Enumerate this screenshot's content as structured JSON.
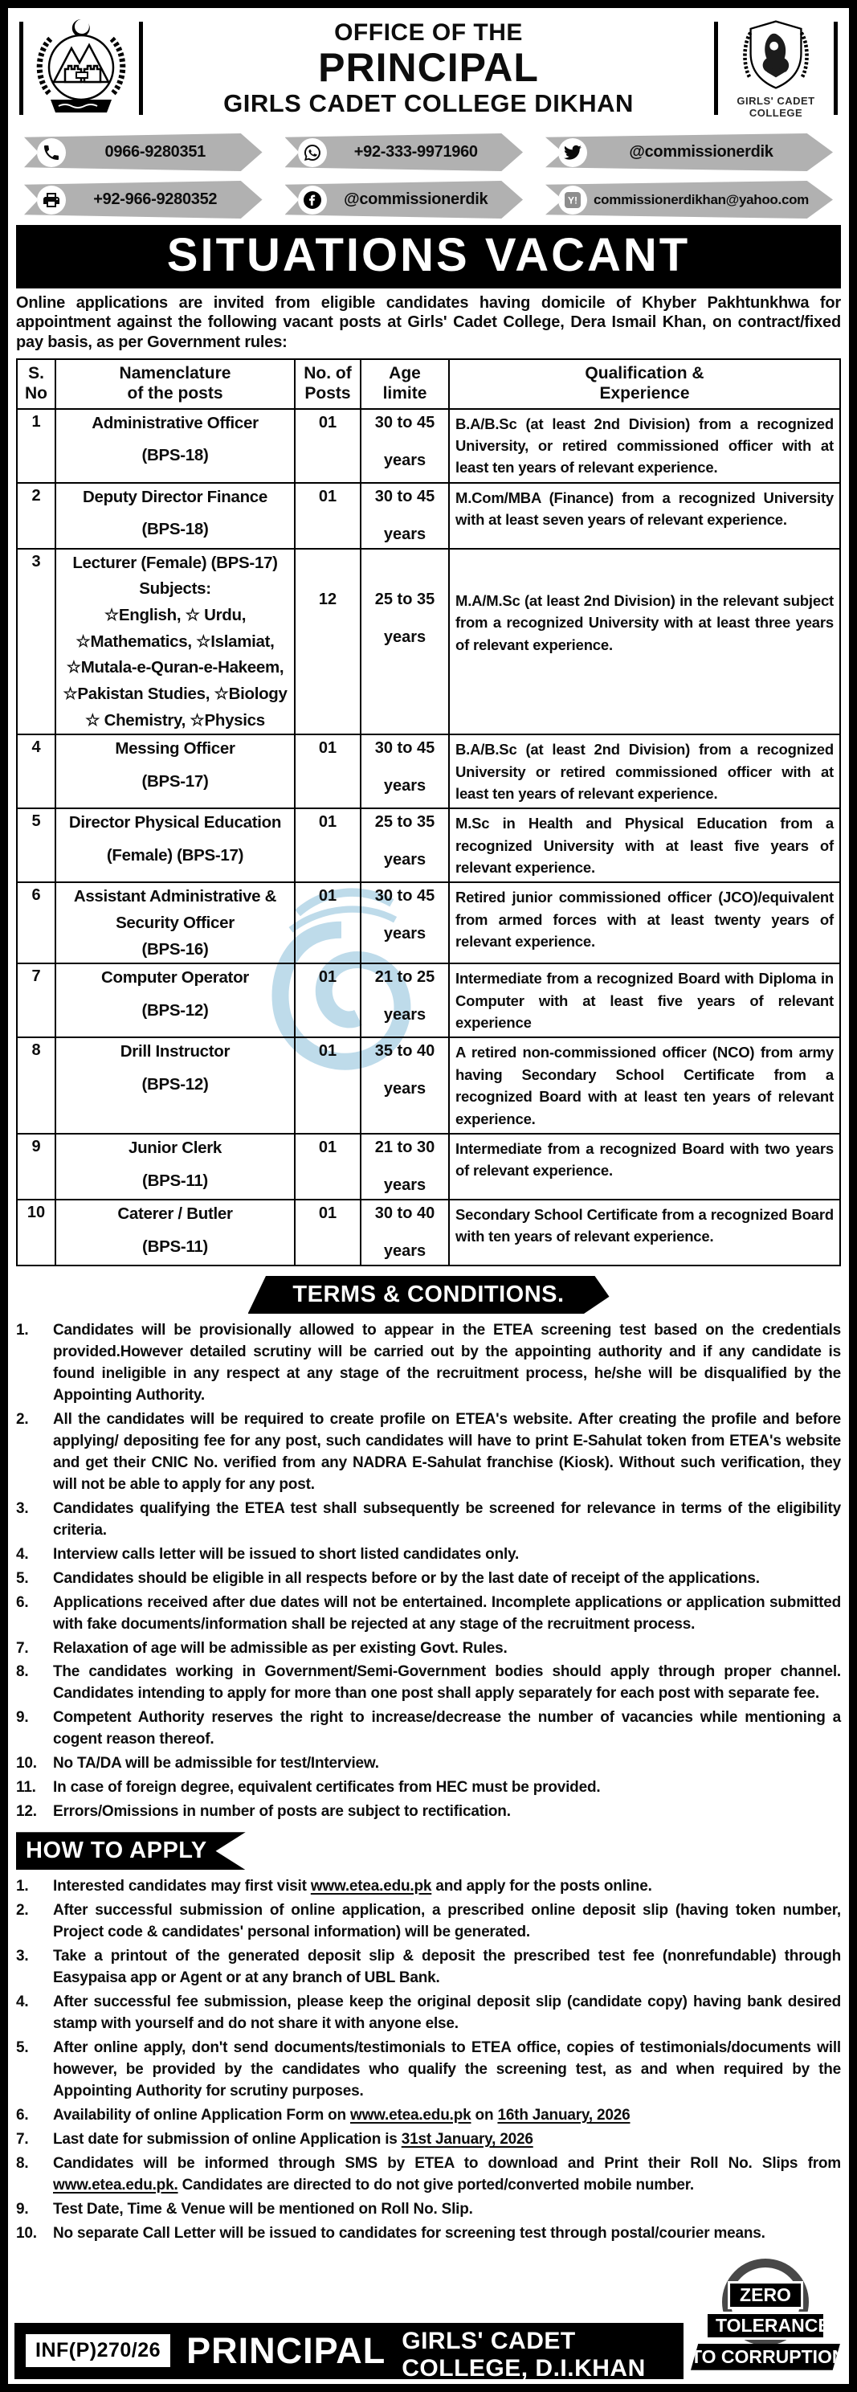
{
  "header": {
    "office": "OFFICE OF THE",
    "principal": "PRINCIPAL",
    "college": "GIRLS CADET COLLEGE DIKHAN",
    "left_logo": "kpk-government-emblem",
    "right_logo": "girls-cadet-college-crest",
    "crest_text": "GIRLS' CADET COLLEGE"
  },
  "contacts": [
    {
      "icon": "phone-icon",
      "text": "0966-9280351"
    },
    {
      "icon": "whatsapp-icon",
      "text": "+92-333-9971960"
    },
    {
      "icon": "twitter-icon",
      "text": "@commissionerdik"
    },
    {
      "icon": "fax-icon",
      "text": "+92-966-9280352"
    },
    {
      "icon": "facebook-icon",
      "text": "@commissionerdik"
    },
    {
      "icon": "email-icon",
      "text": "commissionerdikhan@yahoo.com",
      "small": true
    }
  ],
  "banner": "SITUATIONS VACANT",
  "intro": "Online applications are invited from eligible candidates having domicile of Khyber Pakhtunkhwa for appointment against the following vacant posts at Girls' Cadet College, Dera Ismail Khan, on contract/fixed pay basis, as per Government rules:",
  "table": {
    "headers": [
      [
        "S.",
        "No"
      ],
      [
        "Namenclature",
        "of the posts"
      ],
      [
        "No. of",
        "Posts"
      ],
      [
        "Age",
        "limite"
      ],
      [
        "Qualification &",
        "Experience"
      ]
    ],
    "rows": [
      {
        "sno": "1",
        "post_lines": [
          "Administrative Officer",
          "(BPS-18)"
        ],
        "posts": "01",
        "age_lines": [
          "30 to 45",
          "years"
        ],
        "qual": "B.A/B.Sc (at least 2nd Division) from a recognized University, or retired commissioned officer with at least ten years of relevant experience."
      },
      {
        "sno": "2",
        "post_lines": [
          "Deputy Director Finance",
          "(BPS-18)"
        ],
        "posts": "01",
        "age_lines": [
          "30 to 45",
          "years"
        ],
        "qual": "M.Com/MBA (Finance) from a recognized University with at least seven years of relevant experience."
      },
      {
        "sno": "3",
        "post_lines": [
          "Lecturer (Female) (BPS-17)",
          "Subjects:",
          "☆English, ☆ Urdu,",
          "☆Mathematics, ☆Islamiat,",
          "☆Mutala-e-Quran-e-Hakeem,",
          "☆Pakistan Studies, ☆Biology",
          "☆ Chemistry, ☆Physics"
        ],
        "posts": "12",
        "age_lines": [
          "25 to 35",
          "years"
        ],
        "qual": "M.A/M.Sc (at least 2nd Division) in the relevant subject from a recognized University with at least three years of relevant experience.",
        "pad_top": true
      },
      {
        "sno": "4",
        "post_lines": [
          "Messing Officer",
          "(BPS-17)"
        ],
        "posts": "01",
        "age_lines": [
          "30 to 45",
          "years"
        ],
        "qual": "B.A/B.Sc (at least 2nd Division) from a recognized University or retired commissioned officer with at least ten years of relevant experience."
      },
      {
        "sno": "5",
        "post_lines": [
          "Director Physical Education",
          "(Female) (BPS-17)"
        ],
        "posts": "01",
        "age_lines": [
          "25 to 35",
          "years"
        ],
        "qual": "M.Sc in Health and Physical Education from a recognized University with at least five years of relevant experience."
      },
      {
        "sno": "6",
        "post_lines": [
          "Assistant Administrative &",
          "Security Officer",
          "(BPS-16)"
        ],
        "posts": "01",
        "age_lines": [
          "30 to 45",
          "years"
        ],
        "qual": "Retired junior commissioned officer (JCO)/equivalent from armed forces with at least twenty years of relevant experience."
      },
      {
        "sno": "7",
        "post_lines": [
          "Computer Operator",
          "(BPS-12)"
        ],
        "posts": "01",
        "age_lines": [
          "21 to 25",
          "years"
        ],
        "qual": "Intermediate from a recognized Board with Diploma in Computer with at least five years of relevant experience"
      },
      {
        "sno": "8",
        "post_lines": [
          "Drill Instructor",
          "(BPS-12)"
        ],
        "posts": "01",
        "age_lines": [
          "35 to 40",
          "years"
        ],
        "qual": "A retired non-commissioned officer (NCO) from army having Secondary School Certificate from a recognized Board with at least ten years of relevant experience."
      },
      {
        "sno": "9",
        "post_lines": [
          "Junior Clerk",
          "(BPS-11)"
        ],
        "posts": "01",
        "age_lines": [
          "21 to 30",
          "years"
        ],
        "qual": "Intermediate from a recognized Board with two years of relevant experience."
      },
      {
        "sno": "10",
        "post_lines": [
          "Caterer / Butler",
          "(BPS-11)"
        ],
        "posts": "01",
        "age_lines": [
          "30 to 40",
          "years"
        ],
        "qual": "Secondary School Certificate from a recognized Board with ten years of relevant experience."
      }
    ]
  },
  "terms": {
    "title": "TERMS & CONDITIONS.",
    "items": [
      "Candidates will be provisionally allowed to appear in the ETEA screening test based on the credentials provided.However detailed scrutiny will be carried out by the appointing authority and if any candidate is found ineligible in any respect at any stage of the recruitment process, he/she will be disqualified by the Appointing Authority.",
      "All the candidates will be required to create profile on ETEA's website. After creating the profile and before applying/ depositing fee for any post, such candidates will have to print E-Sahulat token from ETEA's website and get their CNIC No. verified from any NADRA E-Sahulat franchise (Kiosk). Without such verification, they will not be able to apply for any post.",
      "Candidates qualifying the ETEA test shall subsequently be screened for relevance in terms of the eligibility criteria.",
      "Interview calls letter will be issued to short listed candidates only.",
      "Candidates should be eligible in all respects before or by the last date of receipt of the applications.",
      "Applications received after due dates will not be entertained. Incomplete applications or application submitted with fake documents/information shall be rejected at any stage of the recruitment process.",
      "Relaxation of age will be admissible as per existing Govt. Rules.",
      "The candidates working in Government/Semi-Government bodies should apply through proper channel. Candidates intending to apply for more than one post shall apply separately for each post with separate fee.",
      "Competent Authority reserves the right to increase/decrease the number of vacancies while mentioning a cogent reason thereof.",
      "No TA/DA will be admissible for test/Interview.",
      "In case of foreign degree, equivalent certificates from HEC must be provided.",
      "Errors/Omissions in number of posts are subject to rectification."
    ]
  },
  "apply": {
    "title": "HOW TO APPLY",
    "items": [
      [
        {
          "t": "Interested candidates may first visit "
        },
        {
          "t": "www.etea.edu.pk",
          "em": true
        },
        {
          "t": " and apply for the posts online."
        }
      ],
      [
        {
          "t": "After successful submission of online application, a prescribed online deposit slip (having token number, Project code & candidates' personal information) will be generated."
        }
      ],
      [
        {
          "t": "Take a printout of the generated deposit slip & deposit the prescribed test fee (nonrefundable) through Easypaisa app or Agent or at any branch of UBL Bank."
        }
      ],
      [
        {
          "t": "After successful fee submission, please keep the original deposit slip (candidate copy) having bank desired stamp with yourself and do not share it with anyone else."
        }
      ],
      [
        {
          "t": "After online apply, don't send documents/testimonials to ETEA office, copies of testimonials/documents will however, be provided by the candidates who qualify the screening test, as and when required by the Appointing Authority for scrutiny purposes."
        }
      ],
      [
        {
          "t": "Availability of online Application Form on "
        },
        {
          "t": "www.etea.edu.pk",
          "em": true
        },
        {
          "t": " on "
        },
        {
          "t": "16th January, 2026",
          "em": true
        }
      ],
      [
        {
          "t": "Last date for submission of online Application is "
        },
        {
          "t": "31st January, 2026",
          "em": true
        }
      ],
      [
        {
          "t": "Candidates will be informed through SMS by ETEA to download and Print their Roll No. Slips from "
        },
        {
          "t": "www.etea.edu.pk.",
          "em": true
        },
        {
          "t": " Candidates are directed to do not give ported/converted mobile number."
        }
      ],
      [
        {
          "t": "Test Date, Time & Venue will be mentioned on Roll No. Slip."
        }
      ],
      [
        {
          "t": "No separate Call Letter will be issued to candidates for screening test through postal/courier means."
        }
      ]
    ]
  },
  "footer": {
    "inf": "INF(P)270/26",
    "principal": "PRINCIPAL",
    "college": "GIRLS' CADET COLLEGE, D.I.KHAN",
    "badge_zero": "ZERO",
    "badge_tolerance": "TOLERANCE",
    "badge_corruption": "TO CORRUPTION"
  },
  "colors": {
    "ribbon_gray": "#b1b1b1",
    "ink_black": "#0d0d0d",
    "watermark_blue": "#a9cfe3",
    "badge_ring_gray": "#484848"
  }
}
